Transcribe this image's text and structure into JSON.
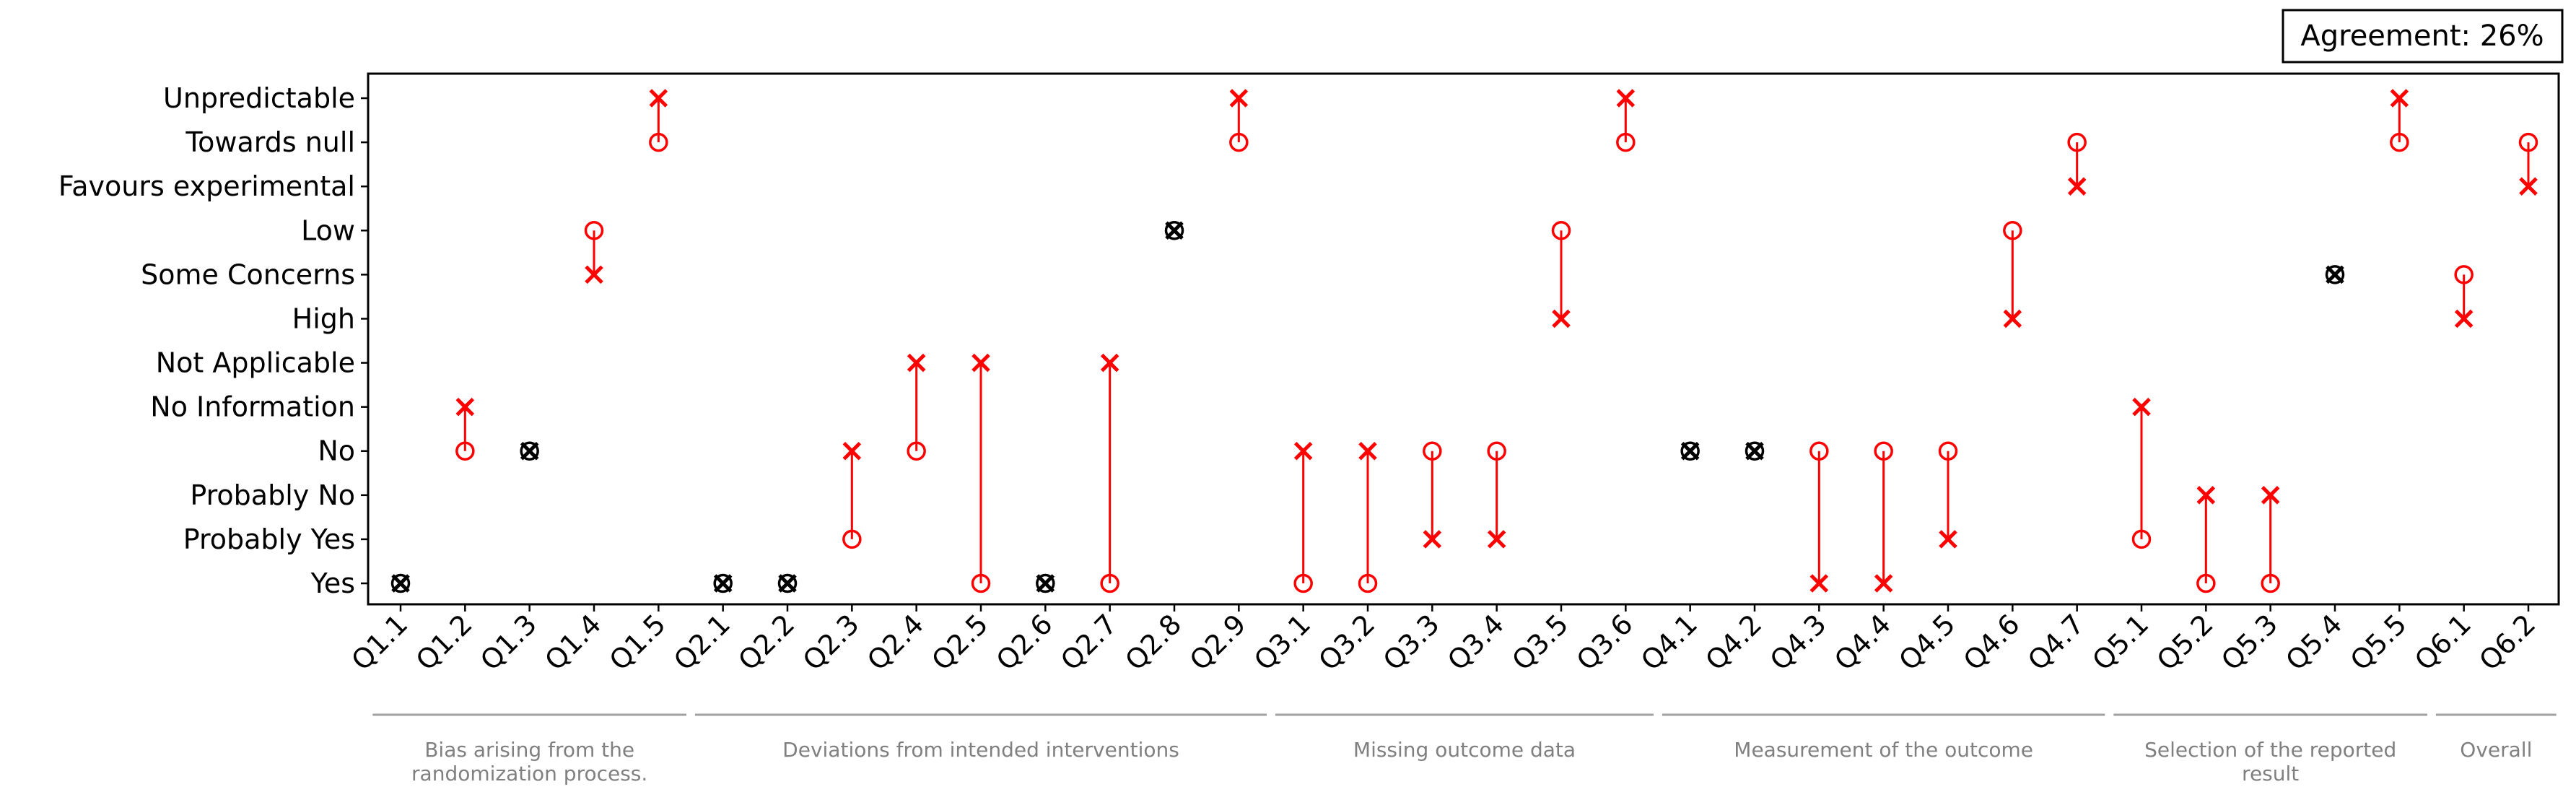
{
  "chart_data": {
    "type": "scatter",
    "agreement_label": "Agreement: 26%",
    "y_categories": [
      "Yes",
      "Probably Yes",
      "Probably No",
      "No",
      "No Information",
      "Not Applicable",
      "High",
      "Some Concerns",
      "Low",
      "Favours experimental",
      "Towards null",
      "Unpredictable"
    ],
    "x_categories": [
      "Q1.1",
      "Q1.2",
      "Q1.3",
      "Q1.4",
      "Q1.5",
      "Q2.1",
      "Q2.2",
      "Q2.3",
      "Q2.4",
      "Q2.5",
      "Q2.6",
      "Q2.7",
      "Q2.8",
      "Q2.9",
      "Q3.1",
      "Q3.2",
      "Q3.3",
      "Q3.4",
      "Q3.5",
      "Q3.6",
      "Q4.1",
      "Q4.2",
      "Q4.3",
      "Q4.4",
      "Q4.5",
      "Q4.6",
      "Q4.7",
      "Q5.1",
      "Q5.2",
      "Q5.3",
      "Q5.4",
      "Q5.5",
      "Q6.1",
      "Q6.2"
    ],
    "series": [
      {
        "marker": "circle",
        "values": [
          "Yes",
          "No",
          "No",
          "Low",
          "Towards null",
          "Yes",
          "Yes",
          "Probably Yes",
          "No",
          "Yes",
          "Yes",
          "Yes",
          "Low",
          "Towards null",
          "Yes",
          "Yes",
          "No",
          "No",
          "Low",
          "Towards null",
          "No",
          "No",
          "No",
          "No",
          "No",
          "Low",
          "Towards null",
          "Probably Yes",
          "Yes",
          "Yes",
          "Some Concerns",
          "Towards null",
          "Some Concerns",
          "Towards null"
        ]
      },
      {
        "marker": "cross",
        "values": [
          "Yes",
          "No Information",
          "No",
          "Some Concerns",
          "Unpredictable",
          "Yes",
          "Yes",
          "No",
          "Not Applicable",
          "Not Applicable",
          "Yes",
          "Not Applicable",
          "Low",
          "Unpredictable",
          "No",
          "No",
          "Probably Yes",
          "Probably Yes",
          "High",
          "Unpredictable",
          "No",
          "No",
          "Yes",
          "Yes",
          "Probably Yes",
          "High",
          "Favours experimental",
          "No Information",
          "Probably No",
          "Probably No",
          "Some Concerns",
          "Unpredictable",
          "High",
          "Favours experimental"
        ]
      }
    ],
    "groups": [
      {
        "label": "Bias arising from the randomization process.",
        "start": 0,
        "end": 4
      },
      {
        "label": "Deviations from intended interventions",
        "start": 5,
        "end": 13
      },
      {
        "label": "Missing outcome data",
        "start": 14,
        "end": 19
      },
      {
        "label": "Measurement of the outcome",
        "start": 20,
        "end": 26
      },
      {
        "label": "Selection of the reported result",
        "start": 27,
        "end": 31
      },
      {
        "label": "Overall",
        "start": 32,
        "end": 33
      }
    ],
    "colors": {
      "disagree": "#ff0000",
      "agree": "#000000",
      "group_text": "#808080"
    }
  }
}
